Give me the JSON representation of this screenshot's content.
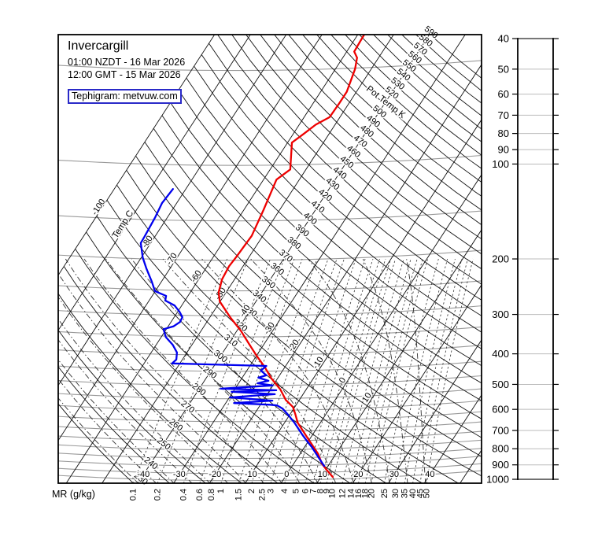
{
  "title": {
    "station": "Invercargill",
    "local_time": "01:00 NZDT - 16 Mar 2026",
    "gmt_time": "12:00 GMT - 15 Mar 2026",
    "source_link": "Tephigram: metvuw.com"
  },
  "axes": {
    "mr_axis_label": "MR (g/kg)",
    "pot_temp_axis_label": "Pot Temp K",
    "temp_axis_label": "Temp C"
  },
  "colors": {
    "temperature_trace": "#ee0000",
    "dewpoint_trace": "#0000ee",
    "isobar": "#9a9a9a",
    "grid": "#111111",
    "dashed_grid": "#333333",
    "link_border": "#2a2ac8"
  },
  "chart_data": {
    "type": "line",
    "subtype": "tephigram-sounding",
    "title": "Invercargill 01:00 NZDT - 16 Mar 2026 / 12:00 GMT - 15 Mar 2026",
    "pressure_scale_hPa": [
      40,
      50,
      60,
      70,
      80,
      90,
      100,
      200,
      300,
      400,
      500,
      600,
      700,
      800,
      900,
      1000
    ],
    "isobar_lines_hPa": [
      50,
      100,
      150,
      200,
      250,
      300,
      350,
      400,
      450,
      500,
      550,
      600,
      650,
      700,
      750,
      800,
      850,
      900,
      950,
      1000
    ],
    "isotherm_lines_C": {
      "min": -100,
      "max": 60,
      "step": 10
    },
    "dry_adiabat_lines_K": {
      "min": 230,
      "max": 590,
      "step": 10
    },
    "isotherm_diagonal_labels_C": [
      -100,
      -80,
      -70,
      -60,
      -50,
      -40,
      -30,
      -20,
      -10,
      0,
      10
    ],
    "isotherm_bottom_labels_C": [
      -40,
      -30,
      -20,
      -10,
      0,
      10,
      20,
      30,
      40
    ],
    "dry_adiabat_labels_K": [
      230,
      240,
      250,
      260,
      270,
      280,
      290,
      300,
      310,
      320,
      330,
      340,
      350,
      360,
      370,
      380,
      390,
      400,
      410,
      420,
      430,
      440,
      450,
      460,
      470,
      480,
      490,
      500,
      520,
      530,
      540,
      550,
      560,
      570,
      580,
      590
    ],
    "mixing_ratio_lines_gkg": [
      0.1,
      0.2,
      0.4,
      0.6,
      0.8,
      1.0,
      1.5,
      2.0,
      2.5,
      3,
      4,
      5,
      6,
      7,
      8,
      9,
      10,
      12,
      14,
      16,
      18,
      20,
      25,
      30,
      35,
      40,
      45,
      50
    ],
    "saturated_adiabat_lines_C": [
      -40,
      -35,
      -30,
      -25,
      -20,
      -15,
      -10,
      -5,
      0,
      5,
      10,
      15,
      20,
      25,
      30,
      35,
      40
    ],
    "series": [
      {
        "name": "Temperature",
        "color": "#ee0000",
        "points_p_hPa_T_C": [
          [
            983,
            13.3
          ],
          [
            933,
            10.3
          ],
          [
            895,
            8.0
          ],
          [
            830,
            5.0
          ],
          [
            738,
            -0.9
          ],
          [
            662,
            -6.3
          ],
          [
            619,
            -8.7
          ],
          [
            590,
            -10.5
          ],
          [
            560,
            -13.8
          ],
          [
            519,
            -17.2
          ],
          [
            478,
            -21.8
          ],
          [
            440,
            -25.7
          ],
          [
            407,
            -29.8
          ],
          [
            373,
            -34.1
          ],
          [
            338,
            -38.9
          ],
          [
            307,
            -44.2
          ],
          [
            273,
            -50.1
          ],
          [
            255,
            -52.1
          ],
          [
            232,
            -53.5
          ],
          [
            211,
            -53.9
          ],
          [
            198,
            -53.6
          ],
          [
            169,
            -53.1
          ],
          [
            140,
            -54.5
          ],
          [
            112,
            -56.4
          ],
          [
            104,
            -54.4
          ],
          [
            85.5,
            -58.8
          ],
          [
            80,
            -57.0
          ],
          [
            75,
            -55.4
          ],
          [
            71,
            -52.9
          ],
          [
            64,
            -52.7
          ],
          [
            59,
            -52.7
          ],
          [
            50,
            -54.5
          ],
          [
            46,
            -56.0
          ],
          [
            44,
            -57.9
          ],
          [
            40.7,
            -58.1
          ],
          [
            38.9,
            -58.2
          ]
        ]
      },
      {
        "name": "Dew point",
        "color": "#0000ee",
        "points_p_hPa_T_C": [
          [
            907,
            8.9
          ],
          [
            846,
            5.4
          ],
          [
            790,
            2.0
          ],
          [
            755,
            -0.5
          ],
          [
            720,
            -3.0
          ],
          [
            662,
            -7.2
          ],
          [
            627,
            -10.2
          ],
          [
            597,
            -13.1
          ],
          [
            583,
            -15.2
          ],
          [
            580,
            -17.3
          ],
          [
            573,
            -27.7
          ],
          [
            563,
            -17.4
          ],
          [
            550,
            -29.8
          ],
          [
            537,
            -17.9
          ],
          [
            528,
            -30.4
          ],
          [
            522,
            -18.2
          ],
          [
            516,
            -34.0
          ],
          [
            504,
            -20.1
          ],
          [
            496,
            -24.7
          ],
          [
            487,
            -22.1
          ],
          [
            476,
            -25.5
          ],
          [
            468,
            -23.7
          ],
          [
            452,
            -26.1
          ],
          [
            437,
            -25.4
          ],
          [
            429,
            -52.2
          ],
          [
            417,
            -51.7
          ],
          [
            396,
            -52.8
          ],
          [
            375,
            -55.3
          ],
          [
            354,
            -58.7
          ],
          [
            334,
            -60.8
          ],
          [
            327,
            -58.5
          ],
          [
            317,
            -57.5
          ],
          [
            306,
            -57.7
          ],
          [
            294,
            -59.5
          ],
          [
            281,
            -62.0
          ],
          [
            271,
            -65.5
          ],
          [
            262,
            -66.1
          ],
          [
            253,
            -70.1
          ],
          [
            236,
            -72.7
          ],
          [
            215,
            -76.5
          ],
          [
            198,
            -79.6
          ],
          [
            178,
            -82.8
          ],
          [
            170,
            -82.9
          ],
          [
            148,
            -83.4
          ],
          [
            133,
            -84.1
          ],
          [
            120,
            -83.6
          ]
        ]
      }
    ],
    "axis_ranges": {
      "pressure_hPa": [
        40,
        1000
      ],
      "grid": "tephigram rotated T / ln-theta"
    },
    "legend_position": "none"
  }
}
